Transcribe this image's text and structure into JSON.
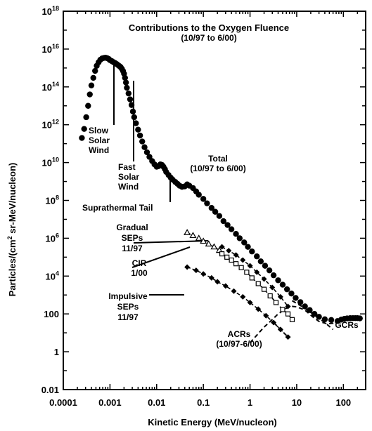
{
  "chart_data": {
    "type": "scatter",
    "title": "Contributions to the Oxygen Fluence",
    "subtitle": "(10/97 to 6/00)",
    "xlabel": "Kinetic Energy (MeV/nucleon)",
    "ylabel": "Particles/(cm² sr-MeV/nucleon)",
    "ylabel_parts": [
      "Particles/(cm",
      "2",
      " sr-MeV/nucleon)"
    ],
    "xscale": "log",
    "yscale": "log",
    "xlim": [
      0.0001,
      300
    ],
    "ylim": [
      0.01,
      1e+18
    ],
    "grid": false,
    "legend": "none",
    "x_ticks": [
      {
        "value": 0.0001,
        "label": "0.0001"
      },
      {
        "value": 0.001,
        "label": "0.001"
      },
      {
        "value": 0.01,
        "label": "0.01"
      },
      {
        "value": 0.1,
        "label": "0.1"
      },
      {
        "value": 1,
        "label": "1"
      },
      {
        "value": 10,
        "label": "10"
      },
      {
        "value": 100,
        "label": "100"
      }
    ],
    "y_ticks": [
      {
        "value": 0.01,
        "base": "0.01",
        "exp": ""
      },
      {
        "value": 1,
        "base": "1",
        "exp": ""
      },
      {
        "value": 100,
        "base": "100",
        "exp": ""
      },
      {
        "value": 10000,
        "base": "10",
        "exp": "4"
      },
      {
        "value": 1000000,
        "base": "10",
        "exp": "6"
      },
      {
        "value": 100000000,
        "base": "10",
        "exp": "8"
      },
      {
        "value": 10000000000,
        "base": "10",
        "exp": "10"
      },
      {
        "value": 1000000000000,
        "base": "10",
        "exp": "12"
      },
      {
        "value": 100000000000000,
        "base": "10",
        "exp": "14"
      },
      {
        "value": 10000000000000000,
        "base": "10",
        "exp": "16"
      },
      {
        "value": 1000000000000000000,
        "base": "10",
        "exp": "18"
      }
    ],
    "series": [
      {
        "key": "total",
        "marker": "filled-circle",
        "points": [
          [
            0.00025,
            200000000000.0
          ],
          [
            0.00028,
            600000000000.0
          ],
          [
            0.00031,
            2500000000000.0
          ],
          [
            0.00034,
            10000000000000.0
          ],
          [
            0.00037,
            40000000000000.0
          ],
          [
            0.0004,
            120000000000000.0
          ],
          [
            0.00044,
            300000000000000.0
          ],
          [
            0.00048,
            700000000000000.0
          ],
          [
            0.00052,
            1300000000000000.0
          ],
          [
            0.00057,
            2000000000000000.0
          ],
          [
            0.00062,
            2700000000000000.0
          ],
          [
            0.00068,
            3200000000000000.0
          ],
          [
            0.00074,
            3400000000000000.0
          ],
          [
            0.0008,
            3500000000000000.0
          ],
          [
            0.00087,
            3300000000000000.0
          ],
          [
            0.00094,
            3000000000000000.0
          ],
          [
            0.001,
            2600000000000000.0
          ],
          [
            0.0011,
            2300000000000000.0
          ],
          [
            0.0012,
            2000000000000000.0
          ],
          [
            0.0013,
            1800000000000000.0
          ],
          [
            0.0014,
            1600000000000000.0
          ],
          [
            0.0015,
            1400000000000000.0
          ],
          [
            0.0016,
            1250000000000000.0
          ],
          [
            0.0017,
            1100000000000000.0
          ],
          [
            0.0018,
            900000000000000.0
          ],
          [
            0.0019,
            700000000000000.0
          ],
          [
            0.002,
            500000000000000.0
          ],
          [
            0.0021,
            300000000000000.0
          ],
          [
            0.0022,
            170000000000000.0
          ],
          [
            0.0023,
            90000000000000.0
          ],
          [
            0.0025,
            45000000000000.0
          ],
          [
            0.0027,
            22000000000000.0
          ],
          [
            0.0029,
            11000000000000.0
          ],
          [
            0.0031,
            5000000000000.0
          ],
          [
            0.0033,
            2500000000000.0
          ],
          [
            0.0036,
            1200000000000.0
          ],
          [
            0.004,
            550000000000.0
          ],
          [
            0.0044,
            270000000000.0
          ],
          [
            0.0049,
            130000000000.0
          ],
          [
            0.0055,
            65000000000.0
          ],
          [
            0.0062,
            35000000000.0
          ],
          [
            0.007,
            20000000000.0
          ],
          [
            0.008,
            12000000000.0
          ],
          [
            0.009,
            8000000000.0
          ],
          [
            0.01,
            6000000000.0
          ],
          [
            0.011,
            6500000000.0
          ],
          [
            0.012,
            8000000000.0
          ],
          [
            0.013,
            7500000000.0
          ],
          [
            0.014,
            6000000000.0
          ],
          [
            0.015,
            4500000000.0
          ],
          [
            0.016,
            3200000000.0
          ],
          [
            0.018,
            2200000000.0
          ],
          [
            0.02,
            1600000000.0
          ],
          [
            0.022,
            1250000000.0
          ],
          [
            0.025,
            950000000.0
          ],
          [
            0.028,
            750000000.0
          ],
          [
            0.031,
            600000000.0
          ],
          [
            0.035,
            520000000.0
          ],
          [
            0.04,
            550000000.0
          ],
          [
            0.045,
            700000000.0
          ],
          [
            0.05,
            600000000.0
          ],
          [
            0.06,
            450000000.0
          ],
          [
            0.07,
            300000000.0
          ],
          [
            0.08,
            200000000.0
          ],
          [
            0.1,
            120000000.0
          ],
          [
            0.12,
            70000000.0
          ],
          [
            0.15,
            40000000.0
          ],
          [
            0.18,
            25000000.0
          ],
          [
            0.22,
            15000000.0
          ],
          [
            0.27,
            8000000.0
          ],
          [
            0.33,
            5000000.0
          ],
          [
            0.4,
            3000000.0
          ],
          [
            0.5,
            1700000.0
          ],
          [
            0.6,
            1000000.0
          ],
          [
            0.75,
            600000.0
          ],
          [
            0.9,
            350000.0
          ],
          [
            1.1,
            200000.0
          ],
          [
            1.4,
            110000.0
          ],
          [
            1.7,
            60000.0
          ],
          [
            2.1,
            35000.0
          ],
          [
            2.6,
            20000.0
          ],
          [
            3.2,
            11000.0
          ],
          [
            4,
            6000.0
          ],
          [
            5,
            3500.0
          ],
          [
            6.2,
            2000.0
          ],
          [
            7.7,
            1200.0
          ],
          [
            9.5,
            700
          ],
          [
            12,
            420
          ],
          [
            15,
            250
          ],
          [
            19,
            160
          ],
          [
            24,
            100
          ],
          [
            30,
            70
          ],
          [
            40,
            52
          ],
          [
            55,
            48
          ]
        ]
      },
      {
        "key": "gcrs",
        "marker": "filled-circle",
        "points": [
          [
            75,
            42
          ],
          [
            90,
            50
          ],
          [
            105,
            55
          ],
          [
            120,
            58
          ],
          [
            140,
            60
          ],
          [
            160,
            60
          ],
          [
            180,
            60
          ],
          [
            200,
            60
          ],
          [
            225,
            58
          ]
        ]
      },
      {
        "key": "gradual-seps",
        "marker": "open-triangle",
        "points": [
          [
            0.045,
            2000000.0
          ],
          [
            0.06,
            1400000.0
          ],
          [
            0.08,
            1000000.0
          ],
          [
            0.1,
            700000.0
          ],
          [
            0.13,
            500000.0
          ],
          [
            0.17,
            350000.0
          ],
          [
            0.22,
            230000.0
          ]
        ]
      },
      {
        "key": "cir",
        "marker": "open-square",
        "points": [
          [
            0.25,
            150000.0
          ],
          [
            0.32,
            100000.0
          ],
          [
            0.4,
            70000.0
          ],
          [
            0.5,
            45000.0
          ],
          [
            0.65,
            28000.0
          ],
          [
            0.85,
            16000.0
          ],
          [
            1.1,
            8000.0
          ],
          [
            1.5,
            4000.0
          ],
          [
            2,
            2000.0
          ],
          [
            2.7,
            900
          ],
          [
            3.6,
            400
          ],
          [
            5,
            170
          ],
          [
            6.5,
            100
          ],
          [
            8,
            50
          ]
        ]
      },
      {
        "key": "cir-dashed",
        "marker": "filled-diamond",
        "points": [
          [
            0.25,
            350000.0
          ],
          [
            0.35,
            220000.0
          ],
          [
            0.5,
            130000.0
          ],
          [
            0.7,
            70000.0
          ],
          [
            1,
            35000.0
          ],
          [
            1.4,
            16000.0
          ],
          [
            2,
            7000.0
          ],
          [
            3,
            2500.0
          ],
          [
            4.5,
            800
          ],
          [
            6.5,
            250
          ]
        ]
      },
      {
        "key": "impulsive-seps",
        "marker": "filled-diamond",
        "points": [
          [
            0.045,
            30000.0
          ],
          [
            0.07,
            20000.0
          ],
          [
            0.1,
            13000.0
          ],
          [
            0.15,
            8000.0
          ],
          [
            0.2,
            5000.0
          ],
          [
            0.3,
            3000.0
          ],
          [
            0.45,
            1600.0
          ],
          [
            0.7,
            800
          ],
          [
            1,
            400
          ],
          [
            1.5,
            180
          ],
          [
            2.2,
            80
          ],
          [
            3.2,
            35
          ],
          [
            4.5,
            15
          ],
          [
            6.5,
            6
          ]
        ]
      }
    ],
    "curves": [
      {
        "key": "impulsive-tail",
        "style": "dashed",
        "points": [
          [
            3.2,
            35
          ],
          [
            4.5,
            15
          ],
          [
            6.5,
            6
          ]
        ]
      },
      {
        "key": "acrs",
        "style": "dashed",
        "points": [
          [
            1,
            3
          ],
          [
            2,
            20
          ],
          [
            3,
            50
          ],
          [
            4,
            100
          ],
          [
            6,
            200
          ],
          [
            8,
            250
          ],
          [
            10,
            240
          ],
          [
            15,
            160
          ],
          [
            22,
            70
          ],
          [
            30,
            40
          ],
          [
            45,
            30
          ],
          [
            60,
            32
          ],
          [
            75,
            38
          ]
        ]
      },
      {
        "key": "cir-extension",
        "style": "dashed",
        "points": [
          [
            8,
            500
          ],
          [
            15,
            200
          ],
          [
            25,
            80
          ],
          [
            40,
            35
          ],
          [
            60,
            15
          ]
        ]
      }
    ],
    "annotations": [
      {
        "key": "slow-solar-wind",
        "lines": [
          "Slow",
          "Solar",
          "Wind"
        ]
      },
      {
        "key": "fast-solar-wind",
        "lines": [
          "Fast",
          "Solar",
          "Wind"
        ]
      },
      {
        "key": "total",
        "lines": [
          "Total",
          "(10/97 to 6/00)"
        ]
      },
      {
        "key": "suprathermal-tail",
        "lines": [
          "Suprathermal Tail"
        ]
      },
      {
        "key": "gradual-seps",
        "lines": [
          "Gradual",
          "SEPs",
          "11/97"
        ]
      },
      {
        "key": "cir",
        "lines": [
          "CIR",
          "1/00"
        ]
      },
      {
        "key": "impulsive-seps",
        "lines": [
          "Impulsive",
          "SEPs",
          "11/97"
        ]
      },
      {
        "key": "acrs",
        "lines": [
          "ACRs",
          "(10/97-6/00)"
        ]
      },
      {
        "key": "gcrs",
        "lines": [
          "GCRs"
        ]
      }
    ]
  }
}
